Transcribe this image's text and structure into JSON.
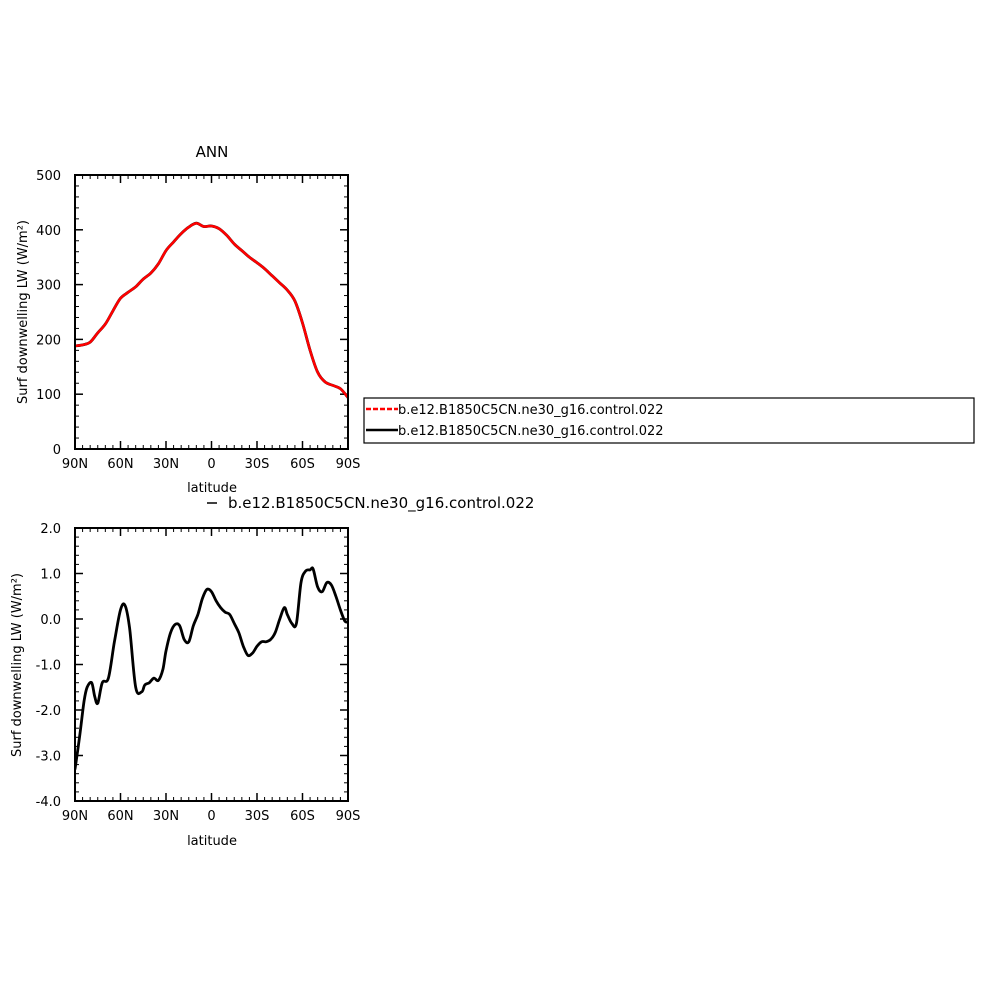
{
  "chart_data": [
    {
      "type": "line",
      "title": "ANN",
      "xlabel": "latitude",
      "ylabel": "Surf downwelling LW (W/m²)",
      "xlim": [
        -90,
        90
      ],
      "ylim": [
        0,
        500
      ],
      "x_ticks": [
        -90,
        -60,
        -30,
        0,
        30,
        60,
        90
      ],
      "x_tick_labels": [
        "90N",
        "60N",
        "30N",
        "0",
        "30S",
        "60S",
        "90S"
      ],
      "y_ticks": [
        0,
        100,
        200,
        300,
        400,
        500
      ],
      "y_tick_labels": [
        "0",
        "100",
        "200",
        "300",
        "400",
        "500"
      ],
      "legend": {
        "placement": "right",
        "entries": [
          {
            "label": "b.e12.B1850C5CN.ne30_g16.control.022",
            "color": "#ff0000",
            "style": "dashed"
          },
          {
            "label": "b.e12.B1850C5CN.ne30_g16.control.022",
            "color": "#000000",
            "style": "solid"
          }
        ]
      },
      "series": [
        {
          "color": "#000000",
          "x": [
            -90,
            -85,
            -80,
            -75,
            -70,
            -65,
            -60,
            -55,
            -50,
            -45,
            -40,
            -35,
            -30,
            -25,
            -20,
            -15,
            -10,
            -5,
            0,
            5,
            10,
            15,
            20,
            25,
            30,
            35,
            40,
            45,
            50,
            55,
            60,
            65,
            70,
            75,
            80,
            85,
            90
          ],
          "y": [
            188,
            190,
            195,
            212,
            228,
            252,
            275,
            286,
            296,
            310,
            321,
            338,
            362,
            378,
            393,
            405,
            412,
            406,
            407,
            402,
            390,
            374,
            362,
            350,
            340,
            329,
            316,
            303,
            290,
            270,
            230,
            180,
            140,
            122,
            116,
            110,
            94
          ]
        },
        {
          "color": "#ff0000",
          "x": [
            -90,
            -85,
            -80,
            -75,
            -70,
            -65,
            -60,
            -55,
            -50,
            -45,
            -40,
            -35,
            -30,
            -25,
            -20,
            -15,
            -10,
            -5,
            0,
            5,
            10,
            15,
            20,
            25,
            30,
            35,
            40,
            45,
            50,
            55,
            60,
            65,
            70,
            75,
            80,
            85,
            90
          ],
          "y": [
            188,
            190,
            195,
            212,
            228,
            252,
            275,
            286,
            296,
            310,
            321,
            338,
            362,
            378,
            393,
            405,
            412,
            406,
            407,
            402,
            390,
            374,
            362,
            350,
            340,
            329,
            316,
            303,
            290,
            270,
            230,
            180,
            140,
            122,
            116,
            110,
            94
          ]
        }
      ]
    },
    {
      "type": "line",
      "title": "",
      "legend_label": "b.e12.B1850C5CN.ne30_g16.control.022",
      "xlabel": "latitude",
      "ylabel": "Surf downwelling LW (W/m²)",
      "xlim": [
        -90,
        90
      ],
      "ylim": [
        -4,
        2
      ],
      "x_ticks": [
        -90,
        -60,
        -30,
        0,
        30,
        60,
        90
      ],
      "x_tick_labels": [
        "90N",
        "60N",
        "30N",
        "0",
        "30S",
        "60S",
        "90S"
      ],
      "y_ticks": [
        -4,
        -3,
        -2,
        -1,
        0,
        1,
        2
      ],
      "y_tick_labels": [
        "-4.0",
        "-3.0",
        "-2.0",
        "-1.0",
        "0.0",
        "1.0",
        "2.0"
      ],
      "series": [
        {
          "color": "#000000",
          "x": [
            -90,
            -87,
            -84,
            -82,
            -79,
            -77,
            -75,
            -72,
            -68,
            -64,
            -60,
            -57,
            -54,
            -50,
            -46,
            -44,
            -41,
            -38,
            -35,
            -32,
            -30,
            -27,
            -24,
            -21,
            -18,
            -15,
            -12,
            -9,
            -6,
            -3,
            0,
            3,
            6,
            9,
            12,
            15,
            18,
            21,
            24,
            27,
            30,
            33,
            36,
            39,
            42,
            45,
            48,
            50,
            53,
            56,
            59,
            62,
            65,
            67,
            70,
            73,
            76,
            79,
            82,
            85,
            88,
            90
          ],
          "y": [
            -3.3,
            -2.6,
            -1.8,
            -1.5,
            -1.4,
            -1.7,
            -1.85,
            -1.4,
            -1.3,
            -0.5,
            0.2,
            0.3,
            -0.2,
            -1.5,
            -1.6,
            -1.45,
            -1.4,
            -1.3,
            -1.35,
            -1.1,
            -0.7,
            -0.3,
            -0.12,
            -0.15,
            -0.45,
            -0.5,
            -0.15,
            0.1,
            0.45,
            0.65,
            0.6,
            0.4,
            0.25,
            0.15,
            0.1,
            -0.1,
            -0.3,
            -0.6,
            -0.8,
            -0.75,
            -0.6,
            -0.5,
            -0.5,
            -0.45,
            -0.3,
            0.0,
            0.25,
            0.1,
            -0.1,
            -0.1,
            0.8,
            1.05,
            1.08,
            1.1,
            0.7,
            0.6,
            0.8,
            0.75,
            0.5,
            0.2,
            -0.05,
            -0.05
          ]
        }
      ]
    }
  ]
}
